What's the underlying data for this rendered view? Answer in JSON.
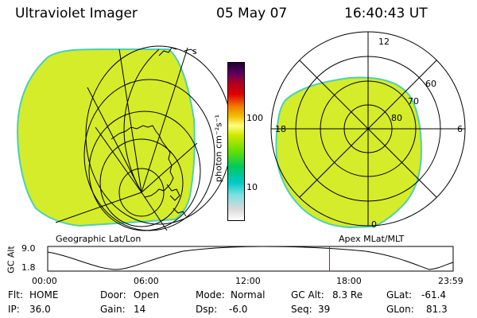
{
  "header": {
    "instrument": "Ultraviolet Imager",
    "date": "05 May 07",
    "time": "16:40:43 UT"
  },
  "colorbar": {
    "unit_label": "photon cm⁻²s⁻¹",
    "tick_100": "100",
    "tick_10": "10",
    "colors": [
      "#ffffff",
      "#d9d9d9",
      "#80e0e0",
      "#00c8c8",
      "#00c860",
      "#66e000",
      "#cfe800",
      "#ffff80",
      "#f0c000",
      "#f08000",
      "#e00000",
      "#b00020",
      "#600060",
      "#200030"
    ]
  },
  "left_panel": {
    "label": "Geographic Lat/Lon",
    "fill_color": "#d4ec2a",
    "edge_color": "#4ad0b8"
  },
  "right_panel": {
    "label": "Apex MLat/MLT",
    "fill_color": "#d4ec2a",
    "mlt_12": "12",
    "mlt_18": "18",
    "mlt_6": "6",
    "mlt_0": "0",
    "mlat_60": "60",
    "mlat_70": "70",
    "mlat_80": "80"
  },
  "orbit_plot": {
    "ylabel": "GC Alt",
    "y_top": "9.0",
    "y_bottom": "1.8",
    "x_labels": [
      "00:00",
      "06:00",
      "12:00",
      "18:00",
      "23:59"
    ],
    "current_time_marker_color": "#e00000",
    "current_time_fraction": 0.695
  },
  "status": {
    "flt_label": "Flt:",
    "flt_value": "HOME",
    "ip_label": "IP:",
    "ip_value": "36.0",
    "door_label": "Door:",
    "door_value": "Open",
    "gain_label": "Gain:",
    "gain_value": "14",
    "mode_label": "Mode:",
    "mode_value": "Normal",
    "dsp_label": "Dsp:",
    "dsp_value": "-6.0",
    "gcalt_label": "GC Alt:",
    "gcalt_value": "8.3 Re",
    "seq_label": "Seq:",
    "seq_value": "39",
    "glat_label": "GLat:",
    "glat_value": "-61.4",
    "glon_label": "GLon:",
    "glon_value": "81.3"
  }
}
